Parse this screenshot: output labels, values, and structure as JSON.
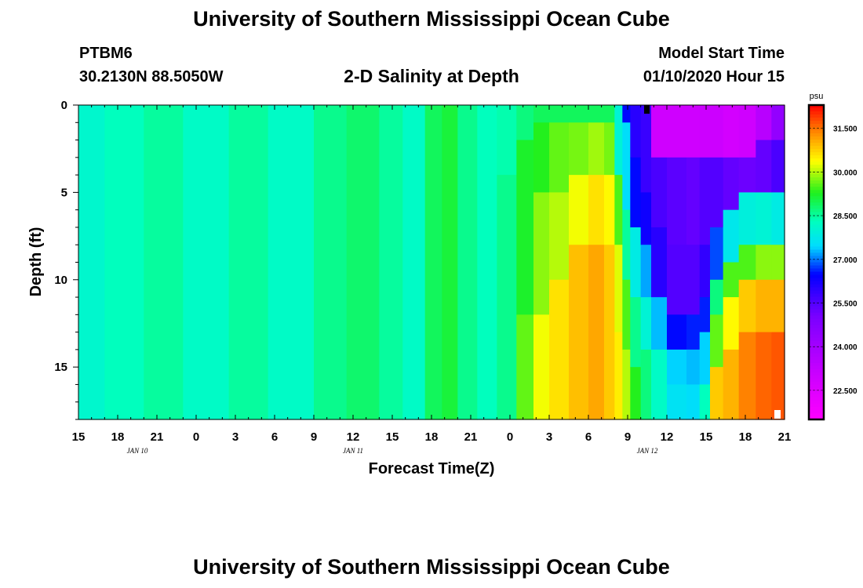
{
  "header": {
    "title": "University of Southern Mississippi Ocean Cube",
    "station": "PTBM6",
    "coordinates": "30.2130N 88.5050W",
    "model_start_label": "Model Start Time",
    "model_start_value": "01/10/2020 Hour 15"
  },
  "footer": {
    "title": "University of Southern Mississippi Ocean Cube"
  },
  "chart_data": {
    "type": "heatmap",
    "title": "2-D Salinity at Depth",
    "xlabel": "Forecast Time(Z)",
    "ylabel": "Depth (ft)",
    "x_hours": [
      0,
      54
    ],
    "x_ticks": [
      {
        "h": 0,
        "label": "15"
      },
      {
        "h": 3,
        "label": "18"
      },
      {
        "h": 6,
        "label": "21"
      },
      {
        "h": 9,
        "label": "0"
      },
      {
        "h": 12,
        "label": "3"
      },
      {
        "h": 15,
        "label": "6"
      },
      {
        "h": 18,
        "label": "9"
      },
      {
        "h": 21,
        "label": "12"
      },
      {
        "h": 24,
        "label": "15"
      },
      {
        "h": 27,
        "label": "18"
      },
      {
        "h": 30,
        "label": "21"
      },
      {
        "h": 33,
        "label": "0"
      },
      {
        "h": 36,
        "label": "3"
      },
      {
        "h": 39,
        "label": "6"
      },
      {
        "h": 42,
        "label": "9"
      },
      {
        "h": 45,
        "label": "12"
      },
      {
        "h": 48,
        "label": "15"
      },
      {
        "h": 51,
        "label": "18"
      },
      {
        "h": 54,
        "label": "21"
      }
    ],
    "date_labels": [
      {
        "h": 4.5,
        "label": "JAN 10"
      },
      {
        "h": 21,
        "label": "JAN 11"
      },
      {
        "h": 43.5,
        "label": "JAN 12"
      }
    ],
    "ylim": [
      0,
      18
    ],
    "y_ticks": [
      0,
      5,
      10,
      15
    ],
    "colorbar": {
      "unit": "psu",
      "range": [
        21.5,
        32.3
      ],
      "ticks": [
        "31.500",
        "30.000",
        "28.500",
        "27.000",
        "25.500",
        "24.000",
        "22.500"
      ]
    },
    "time_columns": [
      {
        "h": 0.0,
        "bands": [
          [
            0,
            18,
            28.1
          ]
        ]
      },
      {
        "h": 2.0,
        "bands": [
          [
            0,
            18,
            28.3
          ]
        ]
      },
      {
        "h": 5.0,
        "bands": [
          [
            0,
            18,
            28.5
          ]
        ]
      },
      {
        "h": 8.0,
        "bands": [
          [
            0,
            18,
            28.2
          ]
        ]
      },
      {
        "h": 11.5,
        "bands": [
          [
            0,
            18,
            28.5
          ]
        ]
      },
      {
        "h": 14.5,
        "bands": [
          [
            0,
            18,
            28.2
          ]
        ]
      },
      {
        "h": 18.0,
        "bands": [
          [
            0,
            18,
            28.6
          ]
        ]
      },
      {
        "h": 20.5,
        "bands": [
          [
            0,
            18,
            28.8
          ]
        ]
      },
      {
        "h": 23.0,
        "bands": [
          [
            0,
            18,
            28.5
          ]
        ]
      },
      {
        "h": 24.8,
        "bands": [
          [
            0,
            18,
            28.2
          ]
        ]
      },
      {
        "h": 26.5,
        "bands": [
          [
            0,
            18,
            28.9
          ]
        ]
      },
      {
        "h": 27.8,
        "bands": [
          [
            0,
            18,
            29.1
          ]
        ]
      },
      {
        "h": 29.0,
        "bands": [
          [
            0,
            18,
            28.6
          ]
        ]
      },
      {
        "h": 30.5,
        "bands": [
          [
            0,
            18,
            28.3
          ]
        ]
      },
      {
        "h": 32.0,
        "bands": [
          [
            0,
            4,
            28.4
          ],
          [
            4,
            18,
            28.6
          ]
        ]
      },
      {
        "h": 33.5,
        "bands": [
          [
            0,
            2,
            28.7
          ],
          [
            2,
            12,
            29.2
          ],
          [
            12,
            18,
            29.6
          ]
        ]
      },
      {
        "h": 34.8,
        "bands": [
          [
            0,
            1,
            28.9
          ],
          [
            1,
            5,
            29.3
          ],
          [
            5,
            12,
            29.8
          ],
          [
            12,
            18,
            30.3
          ]
        ]
      },
      {
        "h": 36.0,
        "bands": [
          [
            0,
            1,
            28.9
          ],
          [
            1,
            5,
            29.6
          ],
          [
            5,
            10,
            30.0
          ],
          [
            10,
            18,
            30.6
          ]
        ]
      },
      {
        "h": 37.5,
        "bands": [
          [
            0,
            1,
            28.9
          ],
          [
            1,
            4,
            29.7
          ],
          [
            4,
            8,
            30.3
          ],
          [
            8,
            18,
            30.9
          ]
        ]
      },
      {
        "h": 39.0,
        "bands": [
          [
            0,
            1,
            28.9
          ],
          [
            1,
            4,
            29.9
          ],
          [
            4,
            8,
            30.6
          ],
          [
            8,
            18,
            31.1
          ]
        ]
      },
      {
        "h": 40.2,
        "bands": [
          [
            0,
            1,
            28.9
          ],
          [
            1,
            4,
            29.7
          ],
          [
            4,
            8,
            30.4
          ],
          [
            8,
            13,
            30.8
          ],
          [
            13,
            18,
            30.8
          ]
        ]
      },
      {
        "h": 41.0,
        "bands": [
          [
            0,
            4,
            28.0
          ],
          [
            4,
            8,
            29.5
          ],
          [
            8,
            13,
            30.2
          ],
          [
            13,
            18,
            30.5
          ]
        ]
      },
      {
        "h": 41.6,
        "bands": [
          [
            0,
            1,
            26.5
          ],
          [
            1,
            6,
            27.5
          ],
          [
            6,
            10,
            28.5
          ],
          [
            10,
            14,
            29.5
          ],
          [
            14,
            18,
            30.0
          ]
        ]
      },
      {
        "h": 42.2,
        "bands": [
          [
            0,
            3,
            26.0
          ],
          [
            3,
            7,
            26.5
          ],
          [
            7,
            11,
            27.8
          ],
          [
            11,
            15,
            28.6
          ],
          [
            15,
            18,
            29.3
          ]
        ]
      },
      {
        "h": 43.0,
        "bands": [
          [
            0,
            5,
            25.8
          ],
          [
            5,
            8,
            26.3
          ],
          [
            8,
            11,
            27.2
          ],
          [
            11,
            14,
            28.0
          ],
          [
            14,
            18,
            28.7
          ]
        ]
      },
      {
        "h": 43.8,
        "bands": [
          [
            0,
            3,
            22.9
          ],
          [
            3,
            7,
            25.6
          ],
          [
            7,
            11,
            26.0
          ],
          [
            11,
            14,
            27.3
          ],
          [
            14,
            18,
            28.2
          ]
        ]
      },
      {
        "h": 45.0,
        "bands": [
          [
            0,
            3,
            22.9
          ],
          [
            3,
            8,
            25.4
          ],
          [
            8,
            12,
            25.5
          ],
          [
            12,
            14,
            26.5
          ],
          [
            14,
            16,
            27.4
          ],
          [
            16,
            18,
            27.6
          ]
        ]
      },
      {
        "h": 46.5,
        "bands": [
          [
            0,
            3,
            22.9
          ],
          [
            3,
            8,
            25.3
          ],
          [
            8,
            12,
            25.5
          ],
          [
            12,
            14,
            26.6
          ],
          [
            14,
            16,
            27.3
          ],
          [
            16,
            18,
            27.5
          ]
        ]
      },
      {
        "h": 47.5,
        "bands": [
          [
            0,
            3,
            23.0
          ],
          [
            3,
            8,
            25.5
          ],
          [
            8,
            11,
            25.9
          ],
          [
            11,
            13,
            26.6
          ],
          [
            13,
            16,
            27.4
          ],
          [
            16,
            18,
            28.3
          ]
        ]
      },
      {
        "h": 48.3,
        "bands": [
          [
            0,
            3,
            23.0
          ],
          [
            3,
            7,
            25.5
          ],
          [
            7,
            10,
            26.8
          ],
          [
            10,
            12,
            28.7
          ],
          [
            12,
            15,
            29.6
          ],
          [
            15,
            18,
            30.8
          ]
        ]
      },
      {
        "h": 49.3,
        "bands": [
          [
            0,
            3,
            22.8
          ],
          [
            3,
            6,
            25.3
          ],
          [
            6,
            9,
            27.7
          ],
          [
            9,
            11,
            29.5
          ],
          [
            11,
            14,
            30.4
          ],
          [
            14,
            18,
            31.0
          ]
        ]
      },
      {
        "h": 50.5,
        "bands": [
          [
            0,
            3,
            22.9
          ],
          [
            3,
            5,
            25.2
          ],
          [
            5,
            8,
            27.9
          ],
          [
            8,
            10,
            29.5
          ],
          [
            10,
            13,
            30.8
          ],
          [
            13,
            18,
            31.4
          ]
        ]
      },
      {
        "h": 51.8,
        "bands": [
          [
            0,
            2,
            23.5
          ],
          [
            2,
            5,
            25.3
          ],
          [
            5,
            8,
            28.0
          ],
          [
            8,
            10,
            29.8
          ],
          [
            10,
            13,
            31.0
          ],
          [
            13,
            18,
            31.6
          ]
        ]
      },
      {
        "h": 53.0,
        "bands": [
          [
            0,
            2,
            24.4
          ],
          [
            2,
            5,
            25.6
          ],
          [
            5,
            8,
            27.8
          ],
          [
            8,
            10,
            29.8
          ],
          [
            10,
            13,
            31.0
          ],
          [
            13,
            18,
            31.7
          ]
        ]
      }
    ]
  }
}
